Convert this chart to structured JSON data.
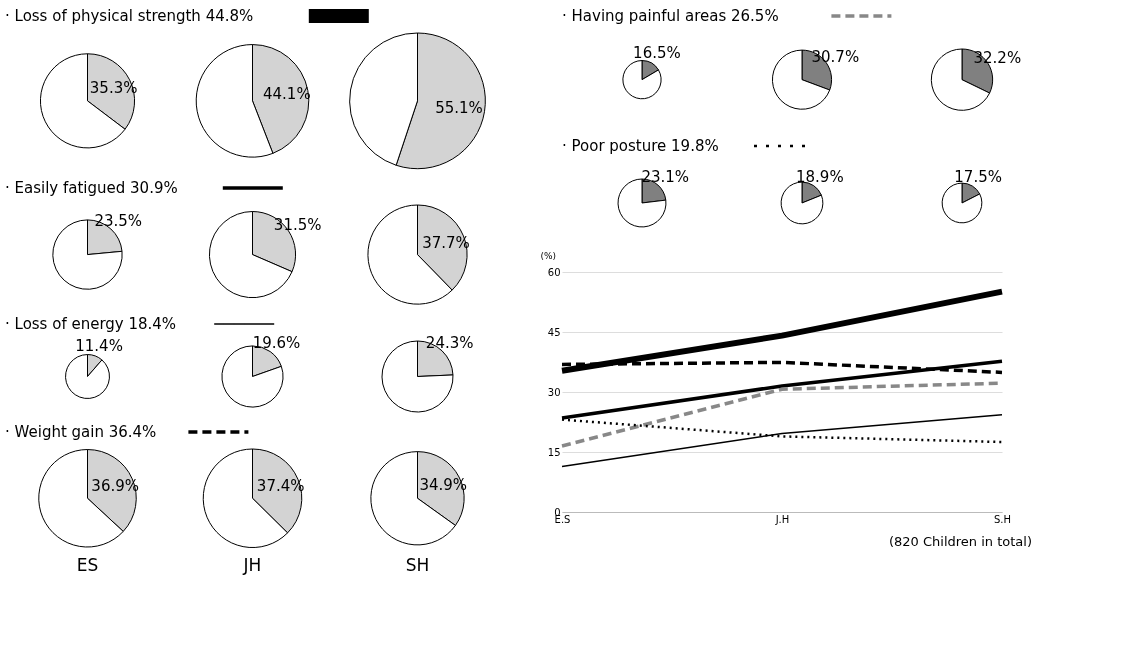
{
  "chart_data": [
    {
      "type": "pie",
      "title": "· Loss of physical strength 44.8%",
      "categories": [
        null,
        null
      ],
      "values": [
        35.3,
        64.7
      ],
      "colors": [
        "#d3d3d3",
        "#ffffff"
      ],
      "value_labels": [
        "35.3%",
        null
      ]
    },
    {
      "type": "pie",
      "categories": [
        null,
        null
      ],
      "values": [
        44.1,
        55.9
      ],
      "colors": [
        "#d3d3d3",
        "#ffffff"
      ],
      "value_labels": [
        "44.1%",
        null
      ]
    },
    {
      "type": "pie",
      "categories": [
        null,
        null
      ],
      "values": [
        55.1,
        44.9
      ],
      "colors": [
        "#d3d3d3",
        "#ffffff"
      ],
      "value_labels": [
        "55.1%",
        null
      ]
    },
    {
      "type": "pie",
      "title": "· Easily fatigued 30.9%",
      "categories": [
        null,
        null
      ],
      "values": [
        23.5,
        76.5
      ],
      "colors": [
        "#d3d3d3",
        "#ffffff"
      ],
      "value_labels": [
        "23.5%",
        null
      ]
    },
    {
      "type": "pie",
      "categories": [
        null,
        null
      ],
      "values": [
        31.5,
        68.5
      ],
      "colors": [
        "#d3d3d3",
        "#ffffff"
      ],
      "value_labels": [
        "31.5%",
        null
      ]
    },
    {
      "type": "pie",
      "categories": [
        null,
        null
      ],
      "values": [
        37.7,
        62.3
      ],
      "colors": [
        "#d3d3d3",
        "#ffffff"
      ],
      "value_labels": [
        "37.7%",
        null
      ]
    },
    {
      "type": "pie",
      "title": "· Loss of energy 18.4%",
      "categories": [
        null,
        null
      ],
      "values": [
        11.4,
        88.6
      ],
      "colors": [
        "#d3d3d3",
        "#ffffff"
      ],
      "value_labels": [
        "11.4%",
        null
      ]
    },
    {
      "type": "pie",
      "categories": [
        null,
        null
      ],
      "values": [
        19.6,
        80.4
      ],
      "colors": [
        "#d3d3d3",
        "#ffffff"
      ],
      "value_labels": [
        "19.6%",
        null
      ]
    },
    {
      "type": "pie",
      "categories": [
        null,
        null
      ],
      "values": [
        24.3,
        75.7
      ],
      "colors": [
        "#d3d3d3",
        "#ffffff"
      ],
      "value_labels": [
        "24.3%",
        null
      ]
    },
    {
      "type": "pie",
      "title": "· Weight gain 36.4%",
      "xlabel": "ES",
      "categories": [
        null,
        null
      ],
      "values": [
        36.9,
        63.1
      ],
      "colors": [
        "#d3d3d3",
        "#ffffff"
      ],
      "value_labels": [
        "36.9%",
        null
      ]
    },
    {
      "type": "pie",
      "xlabel": "JH",
      "categories": [
        null,
        null
      ],
      "values": [
        37.4,
        62.6
      ],
      "colors": [
        "#d3d3d3",
        "#ffffff"
      ],
      "value_labels": [
        "37.4%",
        null
      ]
    },
    {
      "type": "pie",
      "xlabel": "SH",
      "categories": [
        null,
        null
      ],
      "values": [
        34.9,
        65.1
      ],
      "colors": [
        "#d3d3d3",
        "#ffffff"
      ],
      "value_labels": [
        "34.9%",
        null
      ]
    },
    {
      "type": "pie",
      "title": "·  Having painful areas 26.5%",
      "categories": [
        null,
        null
      ],
      "values": [
        16.5,
        83.5
      ],
      "colors": [
        "#808080",
        "#ffffff"
      ],
      "value_labels": [
        "16.5%",
        null
      ]
    },
    {
      "type": "pie",
      "categories": [
        null,
        null
      ],
      "values": [
        30.7,
        69.3
      ],
      "colors": [
        "#808080",
        "#ffffff"
      ],
      "value_labels": [
        "30.7%",
        null
      ]
    },
    {
      "type": "pie",
      "categories": [
        null,
        null
      ],
      "values": [
        32.2,
        67.8
      ],
      "colors": [
        "#808080",
        "#ffffff"
      ],
      "value_labels": [
        "32.2%",
        null
      ]
    },
    {
      "type": "pie",
      "title": "· Poor posture 19.8%",
      "categories": [
        null,
        null
      ],
      "values": [
        23.1,
        76.9
      ],
      "colors": [
        "#808080",
        "#ffffff"
      ],
      "value_labels": [
        "23.1%",
        null
      ]
    },
    {
      "type": "pie",
      "categories": [
        null,
        null
      ],
      "values": [
        18.9,
        81.1
      ],
      "colors": [
        "#808080",
        "#ffffff"
      ],
      "value_labels": [
        "18.9%",
        null
      ]
    },
    {
      "type": "pie",
      "categories": [
        null,
        null
      ],
      "values": [
        17.5,
        82.5
      ],
      "colors": [
        "#808080",
        "#ffffff"
      ],
      "value_labels": [
        "17.5%",
        null
      ]
    },
    {
      "type": "line",
      "categories": [
        "E.S",
        "J.H",
        "S.H"
      ],
      "ylabel": "(%)",
      "ylim": [
        0,
        60
      ],
      "yticks": [
        0,
        15,
        30,
        45,
        60
      ],
      "grid": "y",
      "annotations": [
        "(820 Children in total)"
      ],
      "series": [
        {
          "color": "#000000",
          "line_style": "solid",
          "values": [
            35.3,
            44.1,
            55.1
          ]
        },
        {
          "color": "#000000",
          "line_style": "solid",
          "values": [
            23.5,
            31.5,
            37.7
          ]
        },
        {
          "color": "#000000",
          "line_style": "solid",
          "values": [
            11.4,
            19.6,
            24.3
          ]
        },
        {
          "color": "#000000",
          "line_style": "dashed",
          "values": [
            36.9,
            37.4,
            34.9
          ]
        },
        {
          "color": "#888888",
          "line_style": "dashed",
          "values": [
            16.5,
            30.7,
            32.2
          ]
        },
        {
          "color": "#000000",
          "line_style": "dotted",
          "values": [
            23.1,
            18.9,
            17.5
          ]
        }
      ]
    }
  ]
}
